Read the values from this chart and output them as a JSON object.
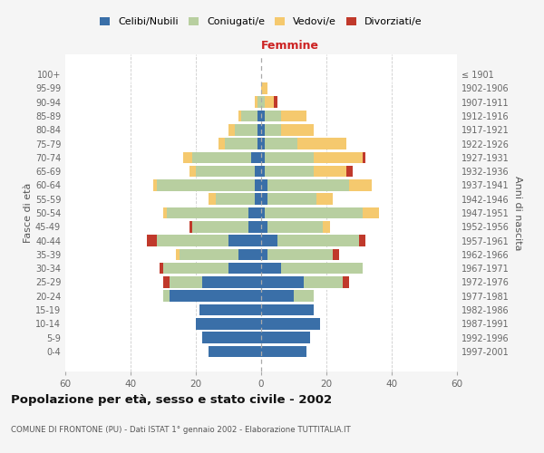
{
  "age_groups": [
    "0-4",
    "5-9",
    "10-14",
    "15-19",
    "20-24",
    "25-29",
    "30-34",
    "35-39",
    "40-44",
    "45-49",
    "50-54",
    "55-59",
    "60-64",
    "65-69",
    "70-74",
    "75-79",
    "80-84",
    "85-89",
    "90-94",
    "95-99",
    "100+"
  ],
  "birth_years": [
    "1997-2001",
    "1992-1996",
    "1987-1991",
    "1982-1986",
    "1977-1981",
    "1972-1976",
    "1967-1971",
    "1962-1966",
    "1957-1961",
    "1952-1956",
    "1947-1951",
    "1942-1946",
    "1937-1941",
    "1932-1936",
    "1927-1931",
    "1922-1926",
    "1917-1921",
    "1912-1916",
    "1907-1911",
    "1902-1906",
    "≤ 1901"
  ],
  "male": {
    "celibi": [
      16,
      18,
      20,
      19,
      28,
      18,
      10,
      7,
      10,
      4,
      4,
      2,
      2,
      2,
      3,
      1,
      1,
      1,
      0,
      0,
      0
    ],
    "coniugati": [
      0,
      0,
      0,
      0,
      2,
      10,
      20,
      18,
      22,
      17,
      25,
      12,
      30,
      18,
      18,
      10,
      7,
      5,
      1,
      0,
      0
    ],
    "vedovi": [
      0,
      0,
      0,
      0,
      0,
      0,
      0,
      1,
      0,
      0,
      1,
      2,
      1,
      2,
      3,
      2,
      2,
      1,
      1,
      0,
      0
    ],
    "divorziati": [
      0,
      0,
      0,
      0,
      0,
      2,
      1,
      0,
      3,
      1,
      0,
      0,
      0,
      0,
      0,
      0,
      0,
      0,
      0,
      0,
      0
    ]
  },
  "female": {
    "nubili": [
      14,
      15,
      18,
      16,
      10,
      13,
      6,
      2,
      5,
      2,
      1,
      2,
      2,
      1,
      1,
      1,
      1,
      1,
      0,
      0,
      0
    ],
    "coniugate": [
      0,
      0,
      0,
      0,
      6,
      12,
      25,
      20,
      25,
      17,
      30,
      15,
      25,
      15,
      15,
      10,
      5,
      5,
      1,
      0,
      0
    ],
    "vedove": [
      0,
      0,
      0,
      0,
      0,
      0,
      0,
      0,
      0,
      2,
      5,
      5,
      7,
      10,
      15,
      15,
      10,
      8,
      3,
      2,
      0
    ],
    "divorziate": [
      0,
      0,
      0,
      0,
      0,
      2,
      0,
      2,
      2,
      0,
      0,
      0,
      0,
      2,
      1,
      0,
      0,
      0,
      1,
      0,
      0
    ]
  },
  "colors": {
    "celibi": "#3a6fa8",
    "coniugati": "#b8cfa0",
    "vedovi": "#f5c96e",
    "divorziati": "#c0392b"
  },
  "xlim": 60,
  "title": "Popolazione per età, sesso e stato civile - 2002",
  "subtitle": "COMUNE DI FRONTONE (PU) - Dati ISTAT 1° gennaio 2002 - Elaborazione TUTTITALIA.IT",
  "xlabel_right": "Femmine",
  "ylabel_left": "Fasce di età",
  "ylabel_right": "Anni di nascita",
  "legend_labels": [
    "Celibi/Nubili",
    "Coniugati/e",
    "Vedovi/e",
    "Divorziati/e"
  ],
  "bg_color": "#f5f5f5",
  "plot_bg_color": "#ffffff"
}
